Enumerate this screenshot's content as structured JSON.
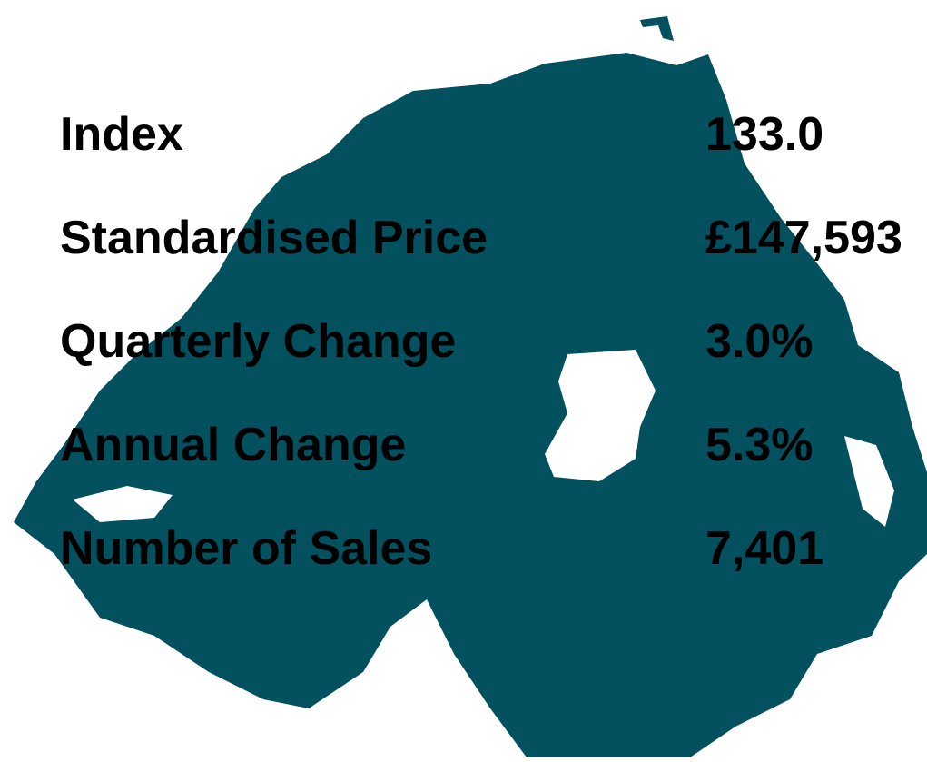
{
  "stats": [
    {
      "label": "Index",
      "value": "133.0"
    },
    {
      "label": "Standardised Price",
      "value": "£147,593"
    },
    {
      "label": "Quarterly Change",
      "value": "3.0%"
    },
    {
      "label": "Annual Change",
      "value": "5.3%"
    },
    {
      "label": "Number of Sales",
      "value": "7,401"
    }
  ]
}
